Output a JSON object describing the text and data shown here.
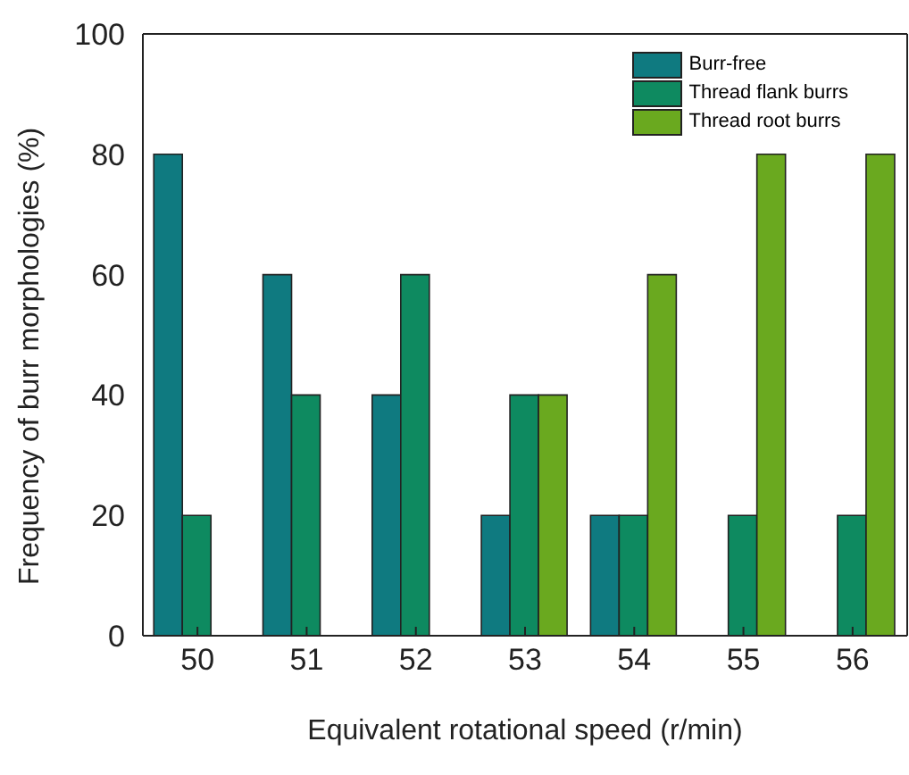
{
  "chart_data": {
    "type": "bar",
    "xlabel": "Equivalent rotational speed (r/min)",
    "ylabel": "Frequency of burr morphologies (%)",
    "categories": [
      "50",
      "51",
      "52",
      "53",
      "54",
      "55",
      "56"
    ],
    "series": [
      {
        "name": "Burr-free",
        "color": "#0f7a80",
        "values": [
          80,
          60,
          40,
          20,
          20,
          0,
          0
        ]
      },
      {
        "name": "Thread flank burrs",
        "color": "#0e8a60",
        "values": [
          20,
          40,
          60,
          40,
          20,
          20,
          20
        ]
      },
      {
        "name": "Thread root burrs",
        "color": "#6aa91f",
        "values": [
          0,
          0,
          0,
          40,
          60,
          80,
          80
        ]
      }
    ],
    "ylim": [
      0,
      100
    ],
    "yticks": [
      0,
      20,
      40,
      60,
      80,
      100
    ],
    "grid": false,
    "legend": "top right"
  }
}
